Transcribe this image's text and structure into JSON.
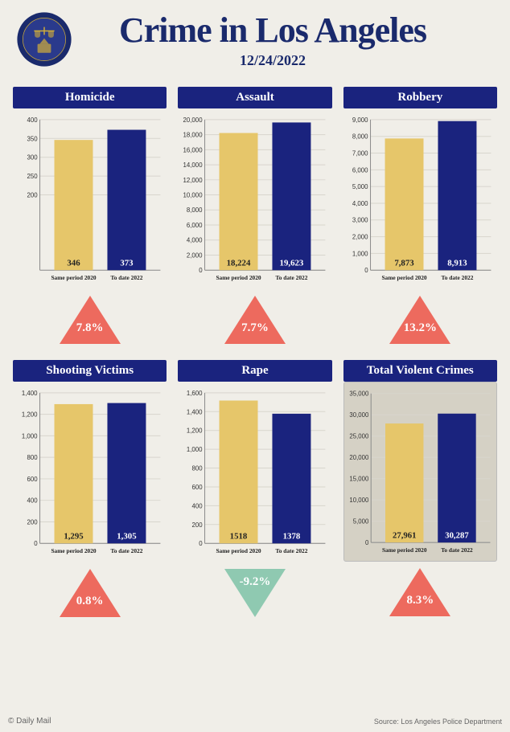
{
  "title": "Crime in Los Angeles",
  "date": "12/24/2022",
  "badge_colors": {
    "ring": "#1a2a6c",
    "inner": "#2a3a8c",
    "gold": "#d4af37"
  },
  "colors": {
    "bar_2020": "#e6c66a",
    "bar_2022": "#1a237e",
    "title_bg": "#1a237e",
    "up_triangle": "#ed6a5e",
    "down_triangle": "#8fc9b1",
    "grid": "#d8d5cd",
    "total_bg": "#d5d1c5"
  },
  "x_labels": [
    "Same period 2020",
    "To date 2022"
  ],
  "panels": [
    {
      "key": "homicide",
      "title": "Homicide",
      "values": [
        346,
        373
      ],
      "display_values": [
        "346",
        "373"
      ],
      "ymax": 400,
      "ytick_step": 50,
      "ymin_tick": 200,
      "change": "7.8%",
      "direction": "up"
    },
    {
      "key": "assault",
      "title": "Assault",
      "values": [
        18224,
        19623
      ],
      "display_values": [
        "18,224",
        "19,623"
      ],
      "ymax": 20000,
      "ytick_step": 2000,
      "ymin_tick": 0,
      "change": "7.7%",
      "direction": "up"
    },
    {
      "key": "robbery",
      "title": "Robbery",
      "values": [
        7873,
        8913
      ],
      "display_values": [
        "7,873",
        "8,913"
      ],
      "ymax": 9000,
      "ytick_step": 1000,
      "ymin_tick": 0,
      "change": "13.2%",
      "direction": "up"
    },
    {
      "key": "shooting",
      "title": "Shooting Victims",
      "values": [
        1295,
        1305
      ],
      "display_values": [
        "1,295",
        "1,305"
      ],
      "ymax": 1400,
      "ytick_step": 200,
      "ymin_tick": 0,
      "change": "0.8%",
      "direction": "up"
    },
    {
      "key": "rape",
      "title": "Rape",
      "values": [
        1518,
        1378
      ],
      "display_values": [
        "1518",
        "1378"
      ],
      "ymax": 1600,
      "ytick_step": 200,
      "ymin_tick": 0,
      "change": "-9.2%",
      "direction": "down"
    },
    {
      "key": "total",
      "title": "Total Violent Crimes",
      "values": [
        27961,
        30287
      ],
      "display_values": [
        "27,961",
        "30,287"
      ],
      "ymax": 35000,
      "ytick_step": 5000,
      "ymin_tick": 0,
      "change": "8.3%",
      "direction": "up",
      "is_total": true
    }
  ],
  "credit_left": "© Daily Mail",
  "credit_right": "Source: Los Angeles Police Department"
}
